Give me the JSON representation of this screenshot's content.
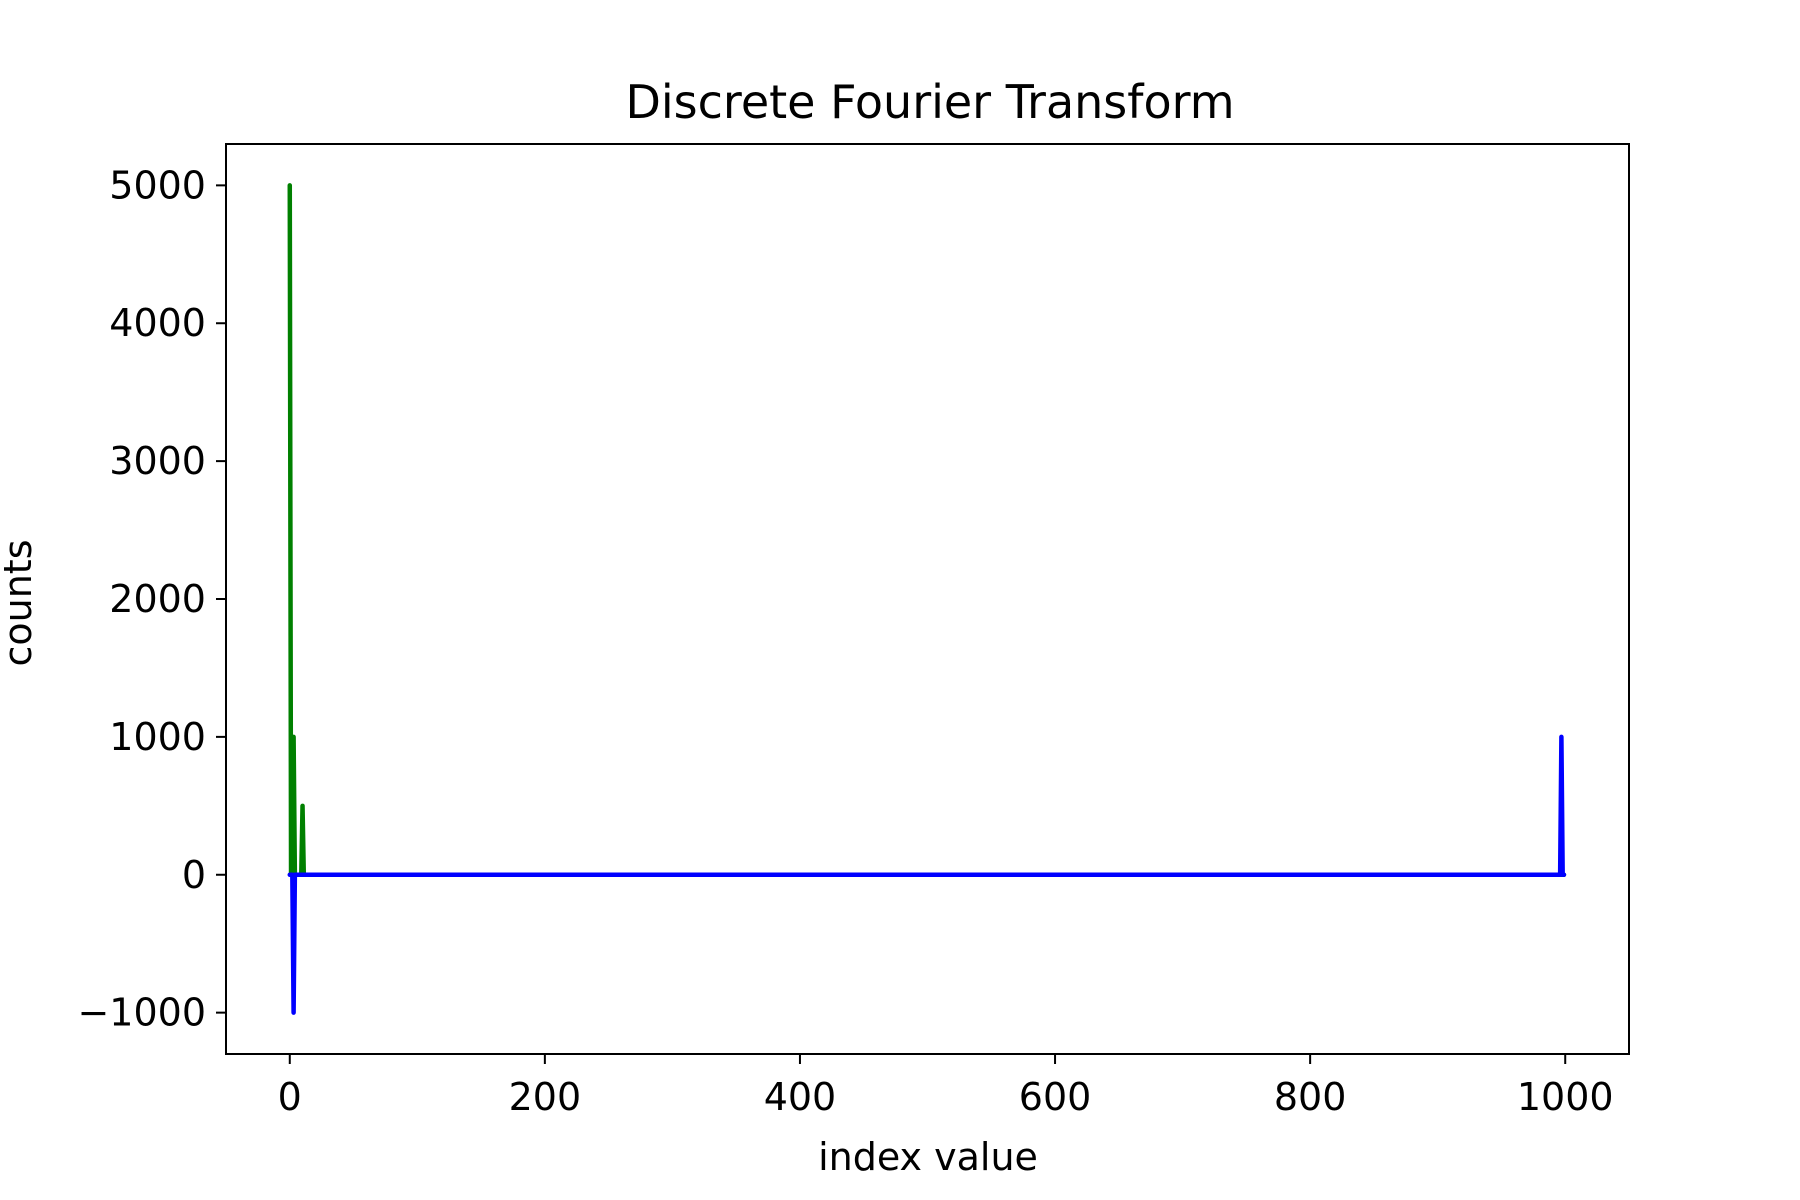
{
  "chart_data": {
    "type": "line",
    "title": "Discrete Fourier Transform",
    "xlabel": "index value",
    "ylabel": "counts",
    "xlim": [
      -50,
      1050
    ],
    "ylim": [
      -1300,
      5300
    ],
    "x_ticks": [
      0,
      200,
      400,
      600,
      800,
      1000
    ],
    "y_ticks": [
      -1000,
      0,
      1000,
      2000,
      3000,
      4000,
      5000
    ],
    "x_tick_labels": [
      "0",
      "200",
      "400",
      "600",
      "800",
      "1000"
    ],
    "y_tick_labels": [
      "−1000",
      "0",
      "1000",
      "2000",
      "3000",
      "4000",
      "5000"
    ],
    "grid": false,
    "series": [
      {
        "color": "#008000",
        "x": [
          0,
          1,
          2,
          3,
          4,
          5,
          6,
          9,
          10,
          11,
          12,
          999
        ],
        "y": [
          5000,
          0,
          0,
          1000,
          0,
          0,
          0,
          0,
          500,
          0,
          0,
          0
        ]
      },
      {
        "color": "#0000ff",
        "x": [
          0,
          1,
          2,
          3,
          4,
          5,
          995,
          996,
          997,
          998,
          999
        ],
        "y": [
          0,
          0,
          0,
          -1000,
          0,
          0,
          0,
          0,
          1000,
          0,
          0
        ]
      }
    ]
  }
}
